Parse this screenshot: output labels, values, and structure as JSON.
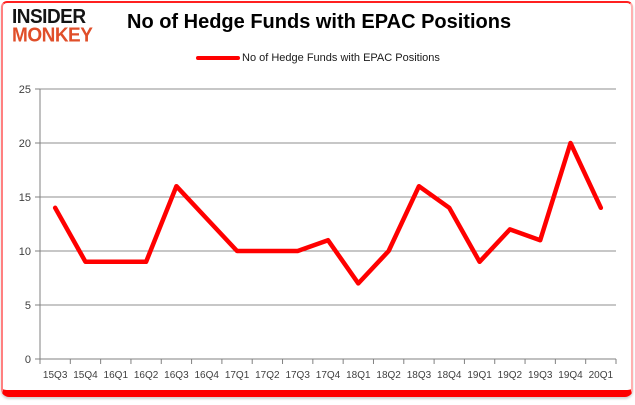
{
  "logo": {
    "line1": "INSIDER",
    "line2": "MONKEY"
  },
  "header": {
    "title": "No of Hedge Funds with EPAC Positions"
  },
  "legend": {
    "label": "No of Hedge Funds with EPAC Positions"
  },
  "colors": {
    "series_line": "#ff0000",
    "gridline": "#8f8f8f",
    "axis": "#808080",
    "tick_text": "#404040",
    "frame_border": "#fe0000",
    "logo_primary": "#141414",
    "logo_accent": "#e04f2a"
  },
  "chart_data": {
    "type": "line",
    "title": "No of Hedge Funds with EPAC Positions",
    "categories": [
      "15Q3",
      "15Q4",
      "16Q1",
      "16Q2",
      "16Q3",
      "16Q4",
      "17Q1",
      "17Q2",
      "17Q3",
      "17Q4",
      "18Q1",
      "18Q2",
      "18Q3",
      "18Q4",
      "19Q1",
      "19Q2",
      "19Q3",
      "19Q4",
      "20Q1"
    ],
    "series": [
      {
        "name": "No of Hedge Funds with EPAC Positions",
        "color": "#ff0000",
        "values": [
          14,
          9,
          9,
          9,
          16,
          13,
          10,
          10,
          10,
          11,
          7,
          10,
          16,
          14,
          9,
          12,
          11,
          20,
          14
        ]
      }
    ],
    "xlabel": "",
    "ylabel": "",
    "ylim": [
      0,
      25
    ],
    "yticks": [
      0,
      5,
      10,
      15,
      20,
      25
    ],
    "grid": true,
    "legend_position": "top-center"
  }
}
